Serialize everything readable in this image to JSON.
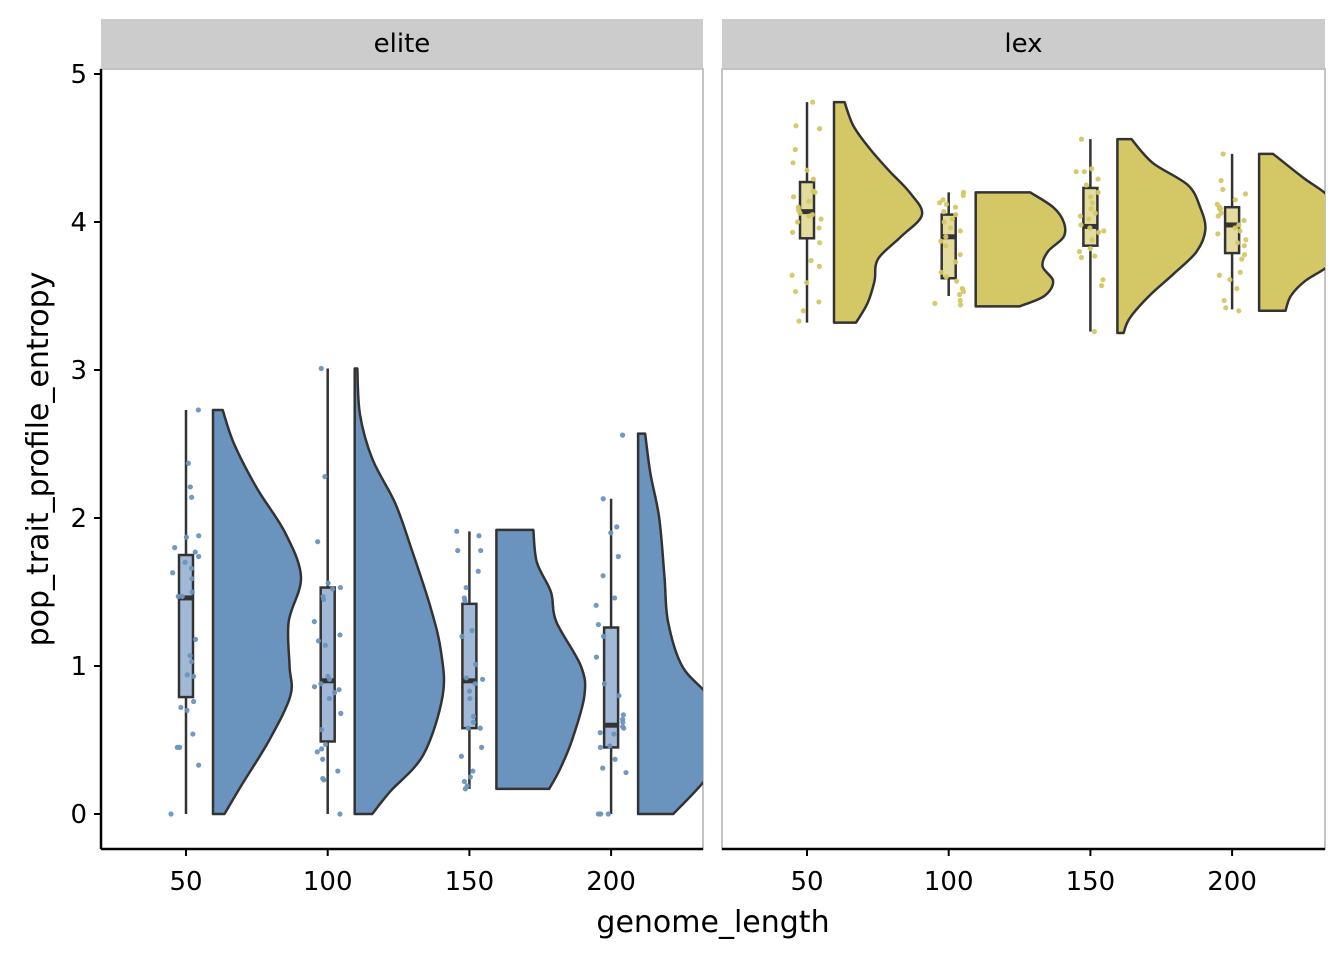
{
  "chart_data": {
    "type": "raincloud",
    "xlabel": "genome_length",
    "ylabel": "pop_trait_profile_entropy",
    "ylim": [
      -0.22,
      5.03
    ],
    "yticks": [
      0,
      1,
      2,
      3,
      4,
      5
    ],
    "xticks": [
      50,
      100,
      150,
      200
    ],
    "grid": false,
    "panels": [
      {
        "label": "elite",
        "color": "#6a93bd",
        "box_color": "#a1b9d6",
        "groups": [
          {
            "x": 50,
            "whisker": [
              0,
              2.73
            ],
            "box": [
              0.79,
              1.75
            ],
            "median": 1.46,
            "violin": {
              "y": [
                0,
                0.2,
                0.5,
                0.8,
                1.0,
                1.3,
                1.6,
                1.9,
                2.2,
                2.5,
                2.73
              ],
              "w": [
                0.13,
                0.33,
                0.64,
                0.88,
                0.87,
                0.86,
                1.0,
                0.82,
                0.5,
                0.24,
                0.11
              ]
            },
            "points": [
              0,
              0.33,
              0.45,
              0.45,
              0.54,
              0.7,
              0.72,
              0.76,
              0.93,
              0.94,
              1.03,
              1.07,
              1.18,
              1.47,
              1.47,
              1.5,
              1.59,
              1.63,
              1.66,
              1.7,
              1.74,
              1.77,
              1.8,
              1.87,
              1.88,
              2.14,
              2.21,
              2.37,
              2.73
            ]
          },
          {
            "x": 100,
            "whisker": [
              0,
              3.01
            ],
            "box": [
              0.49,
              1.53
            ],
            "median": 0.9,
            "violin": {
              "y": [
                0,
                0.15,
                0.4,
                0.8,
                1.1,
                1.4,
                1.8,
                2.1,
                2.4,
                2.7,
                3.01
              ],
              "w": [
                0.2,
                0.4,
                0.78,
                1.0,
                0.98,
                0.86,
                0.64,
                0.46,
                0.2,
                0.06,
                0.03
              ]
            },
            "points": [
              0,
              0.23,
              0.24,
              0.29,
              0.37,
              0.42,
              0.44,
              0.47,
              0.57,
              0.68,
              0.78,
              0.82,
              0.84,
              0.86,
              0.88,
              0.91,
              0.93,
              1.14,
              1.17,
              1.21,
              1.3,
              1.45,
              1.47,
              1.52,
              1.53,
              1.56,
              1.84,
              2.28,
              3.01
            ]
          },
          {
            "x": 150,
            "whisker": [
              0.17,
              1.91
            ],
            "box": [
              0.58,
              1.42
            ],
            "median": 0.9,
            "violin": {
              "y": [
                0.17,
                0.3,
                0.5,
                0.8,
                1.0,
                1.3,
                1.5,
                1.7,
                1.92
              ],
              "w": [
                0.6,
                0.72,
                0.86,
                1.0,
                0.96,
                0.68,
                0.62,
                0.46,
                0.42
              ]
            },
            "points": [
              0.17,
              0.19,
              0.22,
              0.25,
              0.29,
              0.39,
              0.45,
              0.58,
              0.58,
              0.62,
              0.66,
              0.78,
              0.83,
              0.88,
              0.91,
              0.92,
              1.01,
              1.2,
              1.24,
              1.44,
              1.46,
              1.53,
              1.64,
              1.78,
              1.78,
              1.88,
              1.91
            ]
          },
          {
            "x": 200,
            "whisker": [
              0,
              2.13
            ],
            "box": [
              0.45,
              1.26
            ],
            "median": 0.6,
            "violin": {
              "y": [
                0,
                0.2,
                0.4,
                0.6,
                0.8,
                1.0,
                1.3,
                1.6,
                2.0,
                2.3,
                2.57
              ],
              "w": [
                0.4,
                0.72,
                0.98,
                1.0,
                0.8,
                0.5,
                0.34,
                0.3,
                0.24,
                0.14,
                0.08
              ]
            },
            "points": [
              0,
              0,
              0,
              0.28,
              0.31,
              0.37,
              0.45,
              0.46,
              0.54,
              0.55,
              0.58,
              0.59,
              0.62,
              0.64,
              0.67,
              0.8,
              0.88,
              1.06,
              1.2,
              1.28,
              1.41,
              1.46,
              1.61,
              1.74,
              1.9,
              1.94,
              2.13,
              2.56
            ]
          }
        ]
      },
      {
        "label": "lex",
        "color": "#d4c765",
        "box_color": "#e3dc9e",
        "groups": [
          {
            "x": 50,
            "whisker": [
              3.32,
              4.81
            ],
            "box": [
              3.89,
              4.27
            ],
            "median": 4.07,
            "violin": {
              "y": [
                3.32,
                3.45,
                3.6,
                3.75,
                3.9,
                4.05,
                4.2,
                4.35,
                4.5,
                4.65,
                4.81
              ],
              "w": [
                0.25,
                0.38,
                0.46,
                0.5,
                0.76,
                1.0,
                0.86,
                0.62,
                0.4,
                0.22,
                0.12
              ]
            },
            "points": [
              3.33,
              3.4,
              3.46,
              3.53,
              3.59,
              3.64,
              3.7,
              3.74,
              3.86,
              3.93,
              3.96,
              4.0,
              4.02,
              4.04,
              4.05,
              4.06,
              4.08,
              4.1,
              4.14,
              4.17,
              4.2,
              4.21,
              4.29,
              4.35,
              4.4,
              4.49,
              4.63,
              4.65,
              4.81
            ]
          },
          {
            "x": 100,
            "whisker": [
              3.5,
              4.2
            ],
            "box": [
              3.62,
              4.05
            ],
            "median": 3.9,
            "violin": {
              "y": [
                3.43,
                3.5,
                3.6,
                3.7,
                3.8,
                3.9,
                4.0,
                4.1,
                4.2
              ],
              "w": [
                0.5,
                0.78,
                0.88,
                0.76,
                0.82,
                1.0,
                1.0,
                0.88,
                0.62
              ]
            },
            "points": [
              3.44,
              3.45,
              3.47,
              3.51,
              3.53,
              3.55,
              3.6,
              3.63,
              3.66,
              3.73,
              3.78,
              3.84,
              3.87,
              3.9,
              3.94,
              3.96,
              4.0,
              4.02,
              4.05,
              4.07,
              4.1,
              4.12,
              4.13,
              4.15,
              4.18,
              4.2
            ]
          },
          {
            "x": 150,
            "whisker": [
              3.26,
              4.56
            ],
            "box": [
              3.84,
              4.23
            ],
            "median": 3.97,
            "violin": {
              "y": [
                3.25,
                3.35,
                3.5,
                3.65,
                3.8,
                3.95,
                4.1,
                4.25,
                4.4,
                4.56
              ],
              "w": [
                0.07,
                0.14,
                0.36,
                0.64,
                0.9,
                1.0,
                0.94,
                0.8,
                0.4,
                0.16
              ]
            },
            "points": [
              3.26,
              3.57,
              3.61,
              3.76,
              3.77,
              3.8,
              3.82,
              3.88,
              3.93,
              3.94,
              3.96,
              3.98,
              4.02,
              4.04,
              4.06,
              4.09,
              4.13,
              4.17,
              4.2,
              4.25,
              4.29,
              4.34,
              4.34,
              4.36,
              4.56
            ]
          },
          {
            "x": 200,
            "whisker": [
              3.41,
              4.46
            ],
            "box": [
              3.79,
              4.1
            ],
            "median": 3.98,
            "violin": {
              "y": [
                3.4,
                3.5,
                3.6,
                3.7,
                3.8,
                3.9,
                4.0,
                4.1,
                4.2,
                4.3,
                4.46
              ],
              "w": [
                0.3,
                0.36,
                0.52,
                0.78,
                0.9,
                0.98,
                1.0,
                0.9,
                0.74,
                0.5,
                0.16
              ]
            },
            "points": [
              3.4,
              3.42,
              3.47,
              3.55,
              3.61,
              3.64,
              3.66,
              3.75,
              3.78,
              3.84,
              3.86,
              3.88,
              3.92,
              3.94,
              3.96,
              3.98,
              4.01,
              4.04,
              4.06,
              4.09,
              4.09,
              4.1,
              4.12,
              4.15,
              4.19,
              4.22,
              4.28,
              4.46
            ]
          }
        ]
      }
    ]
  }
}
